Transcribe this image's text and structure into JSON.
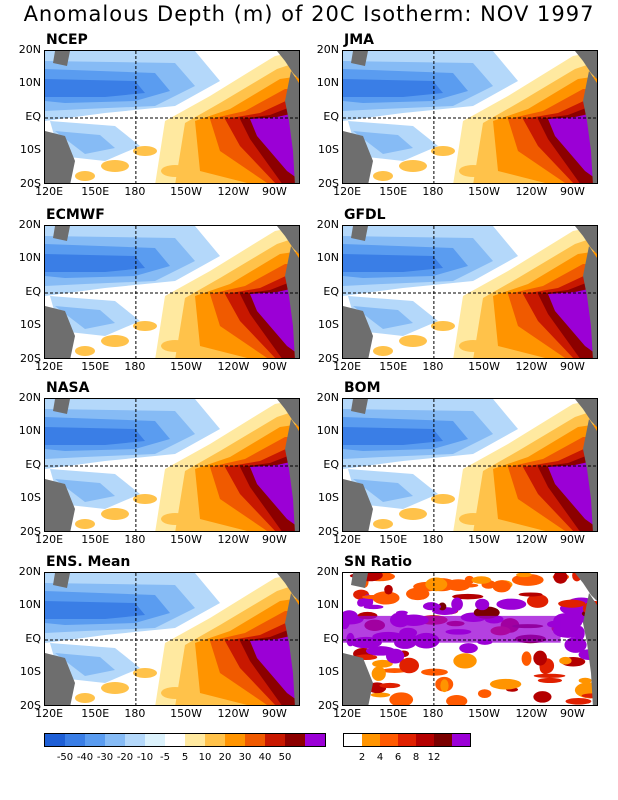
{
  "title": "Anomalous Depth (m) of 20C Isotherm: NOV 1997",
  "lat_labels": [
    "20N",
    "10N",
    "EQ",
    "10S",
    "20S"
  ],
  "lon_labels": [
    "120E",
    "150E",
    "180",
    "150W",
    "120W",
    "90W"
  ],
  "panels": [
    {
      "label": "NCEP"
    },
    {
      "label": "JMA"
    },
    {
      "label": "ECMWF"
    },
    {
      "label": "GFDL"
    },
    {
      "label": "NASA"
    },
    {
      "label": "BOM"
    },
    {
      "label": "ENS. Mean"
    },
    {
      "label": "SN Ratio"
    }
  ],
  "colorbar_depth": {
    "labels": [
      "-50",
      "-40",
      "-30",
      "-20",
      "-10",
      "-5",
      "5",
      "10",
      "20",
      "30",
      "40",
      "50"
    ],
    "colors": [
      "#1e5fd6",
      "#3a7ee6",
      "#5a9cf0",
      "#86bbf5",
      "#b4d8fa",
      "#dcf2fc",
      "#ffffff",
      "#ffe9a0",
      "#ffc24a",
      "#ff9400",
      "#f05a00",
      "#c81800",
      "#8c0000",
      "#9b00d6"
    ]
  },
  "colorbar_sn": {
    "labels": [
      "2",
      "4",
      "6",
      "8",
      "12"
    ],
    "colors": [
      "#ffffff",
      "#ff9400",
      "#ff5a00",
      "#e02000",
      "#b40000",
      "#7a0000",
      "#9b00d6"
    ]
  },
  "colors": {
    "land": "#6e6e6e",
    "positive_max": "#9b00d6"
  }
}
